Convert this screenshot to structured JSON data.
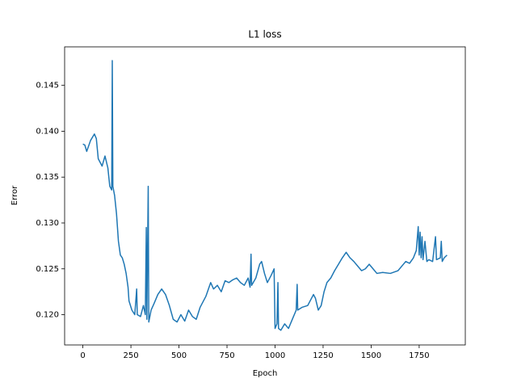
{
  "chart_data": {
    "type": "line",
    "title": "L1 loss",
    "x_label": "Epoch",
    "y_label": "Error",
    "color": "#1f77b4",
    "x": [
      0,
      10,
      20,
      40,
      60,
      70,
      80,
      100,
      115,
      130,
      140,
      150,
      153,
      156,
      165,
      175,
      185,
      195,
      205,
      215,
      225,
      235,
      240,
      255,
      270,
      280,
      283,
      300,
      315,
      325,
      330,
      333,
      340,
      343,
      355,
      370,
      390,
      410,
      430,
      450,
      470,
      490,
      510,
      530,
      550,
      570,
      590,
      610,
      640,
      665,
      680,
      700,
      720,
      740,
      760,
      780,
      800,
      820,
      840,
      860,
      870,
      875,
      878,
      900,
      920,
      930,
      945,
      960,
      980,
      995,
      1000,
      1010,
      1015,
      1018,
      1030,
      1050,
      1070,
      1090,
      1110,
      1115,
      1118,
      1140,
      1170,
      1200,
      1210,
      1225,
      1240,
      1255,
      1270,
      1290,
      1310,
      1330,
      1350,
      1370,
      1390,
      1410,
      1430,
      1450,
      1470,
      1490,
      1510,
      1530,
      1560,
      1600,
      1640,
      1680,
      1700,
      1720,
      1735,
      1745,
      1750,
      1755,
      1760,
      1765,
      1770,
      1780,
      1790,
      1800,
      1820,
      1835,
      1840,
      1860,
      1865,
      1870,
      1880,
      1895
    ],
    "values": [
      0.1386,
      0.1385,
      0.1378,
      0.139,
      0.1397,
      0.1392,
      0.137,
      0.1362,
      0.1373,
      0.136,
      0.134,
      0.1336,
      0.1477,
      0.134,
      0.133,
      0.131,
      0.128,
      0.1265,
      0.1262,
      0.1255,
      0.1245,
      0.123,
      0.1215,
      0.1205,
      0.12,
      0.1228,
      0.12,
      0.1198,
      0.121,
      0.12,
      0.1295,
      0.1195,
      0.134,
      0.1192,
      0.1205,
      0.1212,
      0.1222,
      0.1228,
      0.1222,
      0.121,
      0.1195,
      0.1192,
      0.12,
      0.1193,
      0.1205,
      0.1198,
      0.1195,
      0.1208,
      0.122,
      0.1235,
      0.1228,
      0.1232,
      0.1225,
      0.1237,
      0.1235,
      0.1238,
      0.124,
      0.1235,
      0.1232,
      0.124,
      0.123,
      0.1266,
      0.1232,
      0.124,
      0.1255,
      0.1258,
      0.1245,
      0.1235,
      0.1243,
      0.125,
      0.1185,
      0.119,
      0.1235,
      0.1185,
      0.1183,
      0.119,
      0.1185,
      0.1195,
      0.1205,
      0.1233,
      0.1205,
      0.1208,
      0.121,
      0.1222,
      0.1218,
      0.1205,
      0.121,
      0.1225,
      0.1235,
      0.124,
      0.1248,
      0.1255,
      0.1262,
      0.1268,
      0.1262,
      0.1258,
      0.1253,
      0.1248,
      0.125,
      0.1255,
      0.125,
      0.1245,
      0.1246,
      0.1245,
      0.1248,
      0.1258,
      0.1256,
      0.1262,
      0.127,
      0.1296,
      0.1265,
      0.129,
      0.1262,
      0.1285,
      0.126,
      0.128,
      0.1258,
      0.126,
      0.1258,
      0.1285,
      0.126,
      0.1262,
      0.128,
      0.1258,
      0.1262,
      0.1265
    ],
    "xlim": [
      -95,
      1990
    ],
    "ylim": [
      0.1167,
      0.1492
    ],
    "xticks": [
      0,
      250,
      500,
      750,
      1000,
      1250,
      1500,
      1750
    ],
    "yticks": [
      {
        "value": 0.12,
        "label": "0.120"
      },
      0.125,
      {
        "value": 0.13,
        "label": "0.130"
      },
      0.135,
      {
        "value": 0.14,
        "label": "0.140"
      },
      0.145
    ]
  }
}
